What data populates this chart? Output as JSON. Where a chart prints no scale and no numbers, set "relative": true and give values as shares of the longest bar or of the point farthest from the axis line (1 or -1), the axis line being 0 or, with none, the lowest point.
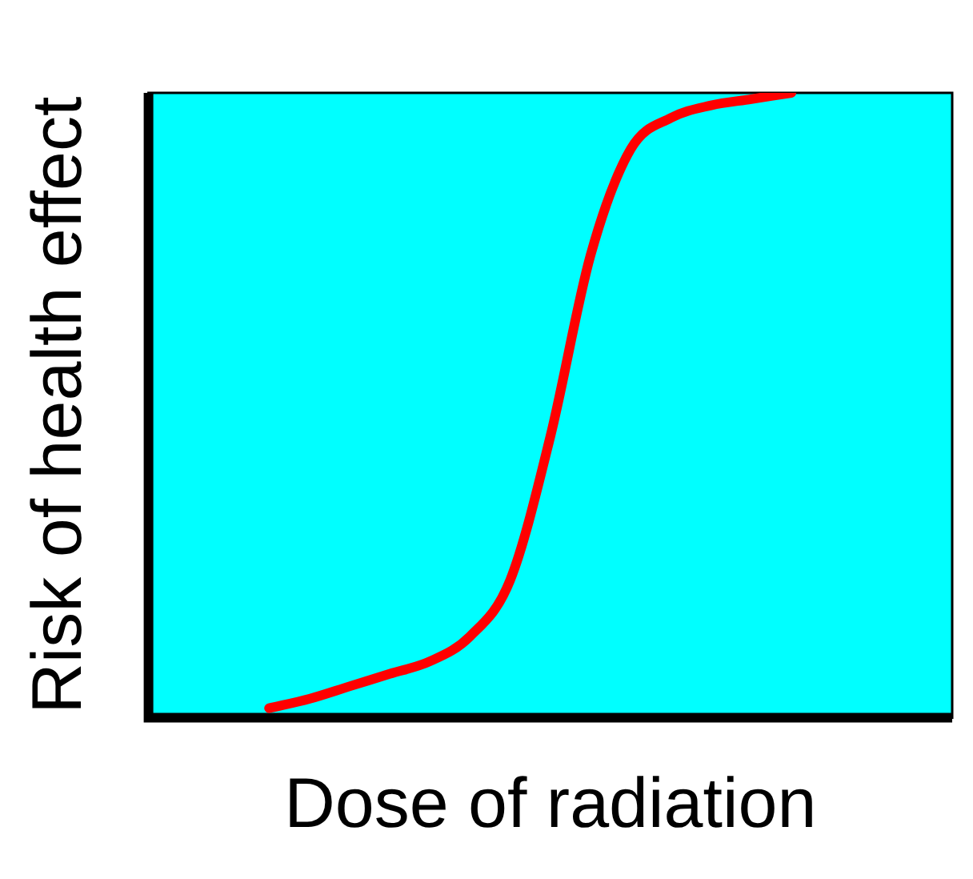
{
  "chart_data": {
    "type": "line",
    "relative": true,
    "xlabel": "Dose of radiation",
    "ylabel": "Risk of health effect",
    "tick_labels": false,
    "marker": "none",
    "categories": [
      null,
      null,
      null,
      null,
      null,
      null,
      null,
      null,
      null,
      null,
      null,
      null,
      null,
      null,
      null,
      null,
      null,
      null,
      null,
      null,
      null
    ],
    "series": [
      {
        "color": "#ff0000",
        "values": [
          null,
          null,
          null,
          0.015,
          0.03,
          0.05,
          0.07,
          0.09,
          0.13,
          0.22,
          0.45,
          0.74,
          0.91,
          0.96,
          0.98,
          0.99,
          1.0,
          null,
          null,
          null,
          null
        ]
      }
    ]
  }
}
